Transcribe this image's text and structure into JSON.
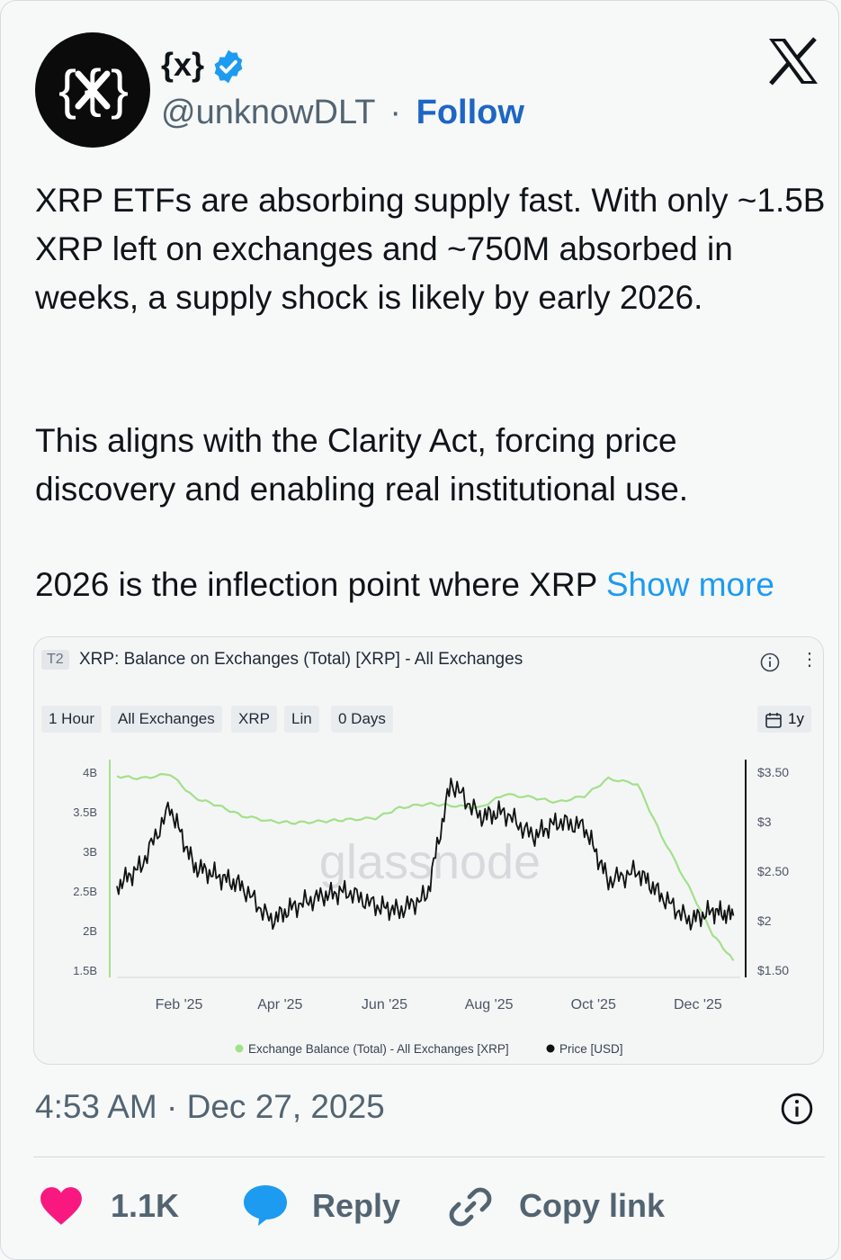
{
  "author": {
    "name": "{x}",
    "handle": "@unknowDLT",
    "separator": "·",
    "follow_label": "Follow"
  },
  "post": {
    "paragraph1": "XRP ETFs are absorbing supply fast. With only ~1.5B XRP left on exchanges and ~750M absorbed in weeks, a supply shock is likely by early 2026.",
    "paragraph2": "This aligns with the Clarity Act, forcing price discovery and enabling real institutional use.",
    "paragraph3": "2026 is the inflection point where XRP",
    "show_more": "Show more",
    "timestamp": "4:53 AM · Dec 27, 2025"
  },
  "chart_card": {
    "tier_badge": "T2",
    "title": "XRP: Balance on Exchanges (Total) [XRP] - All Exchanges",
    "filters": [
      "1 Hour",
      "All Exchanges",
      "XRP",
      "Lin",
      "0 Days"
    ],
    "range_label": "1y",
    "watermark": "glassnode"
  },
  "chart_data": {
    "type": "line",
    "title": "XRP: Balance on Exchanges (Total) [XRP] - All Exchanges",
    "x_ticks": [
      "Feb '25",
      "Apr '25",
      "Jun '25",
      "Aug '25",
      "Oct '25",
      "Dec '25"
    ],
    "y_left_ticks": [
      "4B",
      "3.5B",
      "3B",
      "2.5B",
      "2B",
      "1.5B"
    ],
    "y_right_ticks": [
      "$3.50",
      "$3",
      "$2.50",
      "$2",
      "$1.50"
    ],
    "y_left_range": [
      1.5,
      4.0
    ],
    "y_right_range": [
      1.5,
      3.5
    ],
    "legend": [
      {
        "label": "Exchange Balance (Total) - All Exchanges [XRP]",
        "color": "#a3e08a"
      },
      {
        "label": "Price [USD]",
        "color": "#111111"
      }
    ],
    "series": [
      {
        "name": "Exchange Balance (Total) - All Exchanges [XRP]",
        "axis": "left",
        "color": "#a3e08a",
        "x": [
          "2025-01-01",
          "2025-01-15",
          "2025-02-01",
          "2025-02-15",
          "2025-03-01",
          "2025-03-15",
          "2025-04-01",
          "2025-04-15",
          "2025-05-01",
          "2025-05-15",
          "2025-06-01",
          "2025-06-15",
          "2025-07-01",
          "2025-07-15",
          "2025-08-01",
          "2025-08-15",
          "2025-09-01",
          "2025-09-15",
          "2025-10-01",
          "2025-10-15",
          "2025-11-01",
          "2025-11-15",
          "2025-12-01",
          "2025-12-15",
          "2025-12-27"
        ],
        "values": [
          3.95,
          3.92,
          3.98,
          3.68,
          3.58,
          3.45,
          3.38,
          3.36,
          3.38,
          3.4,
          3.42,
          3.55,
          3.6,
          3.58,
          3.55,
          3.72,
          3.68,
          3.62,
          3.7,
          3.92,
          3.85,
          3.2,
          2.55,
          1.95,
          1.62
        ]
      },
      {
        "name": "Price [USD]",
        "axis": "right",
        "color": "#111111",
        "x": [
          "2025-01-01",
          "2025-01-15",
          "2025-02-01",
          "2025-02-15",
          "2025-03-01",
          "2025-03-15",
          "2025-04-01",
          "2025-04-15",
          "2025-05-01",
          "2025-05-15",
          "2025-06-01",
          "2025-06-15",
          "2025-07-01",
          "2025-07-15",
          "2025-08-01",
          "2025-08-15",
          "2025-09-01",
          "2025-09-15",
          "2025-10-01",
          "2025-10-15",
          "2025-11-01",
          "2025-11-15",
          "2025-12-01",
          "2025-12-15",
          "2025-12-27"
        ],
        "values": [
          2.35,
          2.55,
          3.15,
          2.55,
          2.45,
          2.35,
          2.0,
          2.15,
          2.25,
          2.3,
          2.15,
          2.1,
          2.25,
          3.4,
          3.05,
          3.1,
          2.85,
          3.0,
          2.95,
          2.4,
          2.5,
          2.25,
          2.0,
          2.1,
          2.05
        ]
      }
    ]
  },
  "actions": {
    "likes": "1.1K",
    "reply_label": "Reply",
    "copy_label": "Copy link"
  },
  "colors": {
    "link": "#1d9bf0",
    "follow": "#1d66c4",
    "like": "#f91880",
    "reply": "#1d9bf0",
    "verified": "#1d9bf0"
  }
}
